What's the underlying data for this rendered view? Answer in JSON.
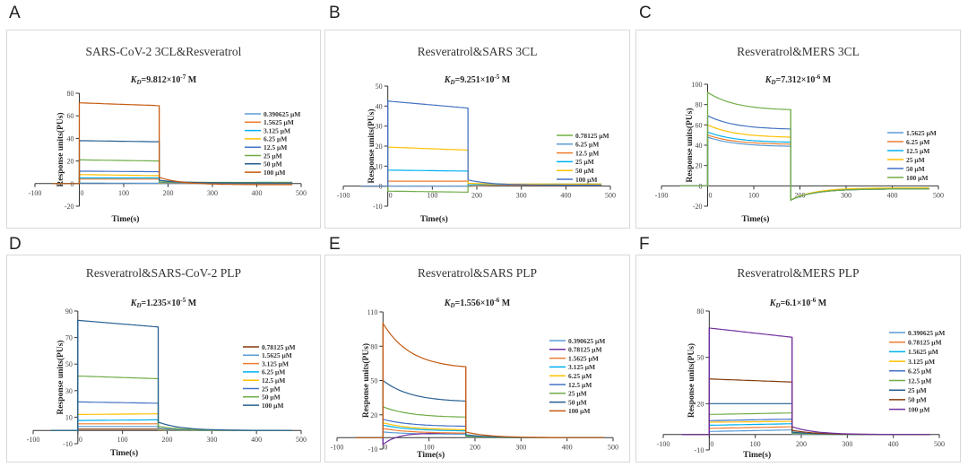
{
  "figure": {
    "panels": [
      {
        "letter": "A",
        "title": "SARS-CoV-2 3CL&Resveratrol",
        "kd_mantissa": "9.812",
        "kd_exp": "-7"
      },
      {
        "letter": "B",
        "title": "Resveratrol&SARS 3CL",
        "kd_mantissa": "9.251",
        "kd_exp": "-5"
      },
      {
        "letter": "C",
        "title": "Resveratrol&MERS 3CL",
        "kd_mantissa": "7.312",
        "kd_exp": "-6"
      },
      {
        "letter": "D",
        "title": "Resveratrol&SARS-CoV-2 PLP",
        "kd_mantissa": "1.235",
        "kd_exp": "-5"
      },
      {
        "letter": "E",
        "title": "Resveratrol&SARS PLP",
        "kd_mantissa": "1.556",
        "kd_exp": "-6"
      },
      {
        "letter": "F",
        "title": "Resveratrol&MERS PLP",
        "kd_mantissa": "6.1",
        "kd_exp": "-6"
      }
    ]
  },
  "chart_data": [
    {
      "type": "line",
      "title": "SARS-CoV-2 3CL&Resveratrol",
      "annotation": "KD=9.812×10-7 M",
      "xlabel": "Time(s)",
      "ylabel": "Response units(PUs)",
      "xlim": [
        -100,
        500
      ],
      "ylim": [
        -20,
        80
      ],
      "xticks": [
        -100,
        0,
        100,
        200,
        300,
        400,
        500
      ],
      "yticks": [
        -20,
        0,
        20,
        40,
        60,
        80
      ],
      "legend_position": "right",
      "series": [
        {
          "name": "0.390625 μM",
          "color": "#5b9bd5",
          "assoc_start": 0.5,
          "assoc_end": 0.3,
          "dissoc_end": 0.5
        },
        {
          "name": "1.5625 μM",
          "color": "#ed7d31",
          "assoc_start": 4,
          "assoc_end": 4,
          "dissoc_end": 0.5
        },
        {
          "name": "3.125 μM",
          "color": "#00b0f0",
          "assoc_start": 5,
          "assoc_end": 5,
          "dissoc_end": 1
        },
        {
          "name": "6.25 μM",
          "color": "#ffc000",
          "assoc_start": 8,
          "assoc_end": 7,
          "dissoc_end": 0.5
        },
        {
          "name": "12.5 μM",
          "color": "#4472c4",
          "assoc_start": 11,
          "assoc_end": 10.5,
          "dissoc_end": 0.5
        },
        {
          "name": "25 μM",
          "color": "#70ad47",
          "assoc_start": 21,
          "assoc_end": 20,
          "dissoc_end": 1
        },
        {
          "name": "50 μM",
          "color": "#255e91",
          "assoc_start": 38,
          "assoc_end": 37,
          "dissoc_end": 0.5
        },
        {
          "name": "100 μM",
          "color": "#c55a11",
          "assoc_start": 71.5,
          "assoc_end": 69,
          "dissoc_end": -1
        }
      ]
    },
    {
      "type": "line",
      "title": "Resveratrol&SARS 3CL",
      "annotation": "KD=9.251×10-5 M",
      "xlabel": "Time(s)",
      "ylabel": "Response units(PUs)",
      "xlim": [
        -100,
        500
      ],
      "ylim": [
        -10,
        50
      ],
      "xticks": [
        -100,
        0,
        100,
        200,
        300,
        400,
        500
      ],
      "yticks": [
        -10,
        0,
        10,
        20,
        30,
        40,
        50
      ],
      "legend_position": "right",
      "series": [
        {
          "name": "0.78125 μM",
          "color": "#70ad47",
          "assoc_start": -2.5,
          "assoc_end": -3,
          "dissoc_end": 1
        },
        {
          "name": "6.25 μM",
          "color": "#5b9bd5",
          "assoc_start": 0,
          "assoc_end": 0,
          "dissoc_end": 0.5
        },
        {
          "name": "12.5 μM",
          "color": "#ed7d31",
          "assoc_start": 2.5,
          "assoc_end": 2.5,
          "dissoc_end": 0.5
        },
        {
          "name": "25 μM",
          "color": "#00b0f0",
          "assoc_start": 8,
          "assoc_end": 7.5,
          "dissoc_end": 1
        },
        {
          "name": "50 μM",
          "color": "#ffc000",
          "assoc_start": 19.5,
          "assoc_end": 18,
          "dissoc_end": 1
        },
        {
          "name": "100 μM",
          "color": "#4472c4",
          "assoc_start": 42.5,
          "assoc_end": 39,
          "dissoc_end": 0.5
        }
      ]
    },
    {
      "type": "line",
      "title": "Resveratrol&MERS 3CL",
      "annotation": "KD=7.312×10-6 M",
      "xlabel": "Time(s)",
      "ylabel": "Response units(PUs)",
      "xlim": [
        -100,
        500
      ],
      "ylim": [
        -20,
        100
      ],
      "xticks": [
        -100,
        0,
        100,
        200,
        300,
        400,
        500
      ],
      "yticks": [
        -20,
        0,
        20,
        40,
        60,
        80,
        100
      ],
      "legend_position": "right",
      "series": [
        {
          "name": "1.5625 μM",
          "color": "#5b9bd5",
          "assoc_start": 48,
          "assoc_end": 39,
          "dissoc_end": -3
        },
        {
          "name": "6.25 μM",
          "color": "#ed7d31",
          "assoc_start": 50,
          "assoc_end": 41,
          "dissoc_end": -3
        },
        {
          "name": "12.5 μM",
          "color": "#00b0f0",
          "assoc_start": 53,
          "assoc_end": 43,
          "dissoc_end": -3
        },
        {
          "name": "25 μM",
          "color": "#ffc000",
          "assoc_start": 60,
          "assoc_end": 48,
          "dissoc_end": -2
        },
        {
          "name": "50 μM",
          "color": "#4472c4",
          "assoc_start": 69,
          "assoc_end": 56,
          "dissoc_end": -3
        },
        {
          "name": "100 μM",
          "color": "#70ad47",
          "assoc_start": 92,
          "assoc_end": 75,
          "dissoc_end": -3
        }
      ]
    },
    {
      "type": "line",
      "title": "Resveratrol&SARS-CoV-2 PLP",
      "annotation": "KD=1.235×10-5 M",
      "xlabel": "Time(s)",
      "ylabel": "Response units(PUs)",
      "xlim": [
        -100,
        500
      ],
      "ylim": [
        -10,
        90
      ],
      "xticks": [
        -100,
        0,
        100,
        200,
        300,
        400,
        500
      ],
      "yticks": [
        -10,
        10,
        30,
        50,
        70,
        90
      ],
      "legend_position": "right",
      "series": [
        {
          "name": "0.78125 μM",
          "color": "#843c0c",
          "assoc_start": 1,
          "assoc_end": 1,
          "dissoc_end": 0
        },
        {
          "name": "1.5625 μM",
          "color": "#5b9bd5",
          "assoc_start": 3,
          "assoc_end": 3,
          "dissoc_end": 0
        },
        {
          "name": "3.125 μM",
          "color": "#ed7d31",
          "assoc_start": 5,
          "assoc_end": 5,
          "dissoc_end": 0
        },
        {
          "name": "6.25 μM",
          "color": "#00b0f0",
          "assoc_start": 7.5,
          "assoc_end": 8,
          "dissoc_end": 0
        },
        {
          "name": "12.5 μM",
          "color": "#ffc000",
          "assoc_start": 12,
          "assoc_end": 12.5,
          "dissoc_end": 0
        },
        {
          "name": "25 μM",
          "color": "#4472c4",
          "assoc_start": 21.5,
          "assoc_end": 20.5,
          "dissoc_end": 0
        },
        {
          "name": "50 μM",
          "color": "#70ad47",
          "assoc_start": 41,
          "assoc_end": 39,
          "dissoc_end": 0
        },
        {
          "name": "100 μM",
          "color": "#255e91",
          "assoc_start": 83,
          "assoc_end": 78,
          "dissoc_end": 0
        }
      ]
    },
    {
      "type": "line",
      "title": "Resveratrol&SARS PLP",
      "annotation": "KD=1.556×10-6 M",
      "xlabel": "Time(s)",
      "ylabel": "Response units(PUs)",
      "xlim": [
        -100,
        500
      ],
      "ylim": [
        -10,
        110
      ],
      "xticks": [
        -100,
        0,
        100,
        200,
        300,
        400,
        500
      ],
      "yticks": [
        -10,
        20,
        50,
        80,
        110
      ],
      "legend_position": "right",
      "series": [
        {
          "name": "0.390625 μM",
          "color": "#5b9bd5",
          "assoc_start": 5,
          "assoc_end": 3,
          "dissoc_end": 0
        },
        {
          "name": "0.78125 μM",
          "color": "#7030a0",
          "assoc_start": -6,
          "assoc_end": 4,
          "dissoc_end": 0
        },
        {
          "name": "1.5625 μM",
          "color": "#ed7d31",
          "assoc_start": 8,
          "assoc_end": 4,
          "dissoc_end": 0
        },
        {
          "name": "3.125 μM",
          "color": "#00b0f0",
          "assoc_start": 11,
          "assoc_end": 6,
          "dissoc_end": 0
        },
        {
          "name": "6.25 μM",
          "color": "#ffc000",
          "assoc_start": 13,
          "assoc_end": 7,
          "dissoc_end": 0
        },
        {
          "name": "12.5 μM",
          "color": "#4472c4",
          "assoc_start": 16,
          "assoc_end": 10,
          "dissoc_end": 0
        },
        {
          "name": "25 μM",
          "color": "#70ad47",
          "assoc_start": 27,
          "assoc_end": 18,
          "dissoc_end": 0
        },
        {
          "name": "50 μM",
          "color": "#255e91",
          "assoc_start": 50,
          "assoc_end": 32,
          "dissoc_end": 0
        },
        {
          "name": "100 μM",
          "color": "#c55a11",
          "assoc_start": 100,
          "assoc_end": 62,
          "dissoc_end": 0
        }
      ]
    },
    {
      "type": "line",
      "title": "Resveratrol&MERS PLP",
      "annotation": "KD=6.1×10-6 M",
      "xlabel": "Time(s)",
      "ylabel": "Response units(PUs)",
      "xlim": [
        -100,
        500
      ],
      "ylim": [
        -10,
        80
      ],
      "xticks": [
        -100,
        0,
        100,
        200,
        300,
        400,
        500
      ],
      "yticks": [
        -10,
        20,
        50,
        80
      ],
      "legend_position": "right",
      "series": [
        {
          "name": "0.390625 μM",
          "color": "#5b9bd5",
          "assoc_start": 2,
          "assoc_end": 3,
          "dissoc_end": 0
        },
        {
          "name": "0.78125 μM",
          "color": "#ed7d31",
          "assoc_start": 4,
          "assoc_end": 5,
          "dissoc_end": 0
        },
        {
          "name": "1.5625 μM",
          "color": "#00b0f0",
          "assoc_start": 6,
          "assoc_end": 7,
          "dissoc_end": 0
        },
        {
          "name": "3.125 μM",
          "color": "#ffc000",
          "assoc_start": 8,
          "assoc_end": 8.5,
          "dissoc_end": 0
        },
        {
          "name": "6.25 μM",
          "color": "#4472c4",
          "assoc_start": 9,
          "assoc_end": 10,
          "dissoc_end": 0
        },
        {
          "name": "12.5 μM",
          "color": "#70ad47",
          "assoc_start": 13,
          "assoc_end": 14,
          "dissoc_end": 0
        },
        {
          "name": "25 μM",
          "color": "#255e91",
          "assoc_start": 20,
          "assoc_end": 20,
          "dissoc_end": 0
        },
        {
          "name": "50 μM",
          "color": "#843c0c",
          "assoc_start": 36,
          "assoc_end": 34,
          "dissoc_end": 0
        },
        {
          "name": "100 μM",
          "color": "#7030a0",
          "assoc_start": 69,
          "assoc_end": 63,
          "dissoc_end": 0
        }
      ]
    }
  ]
}
